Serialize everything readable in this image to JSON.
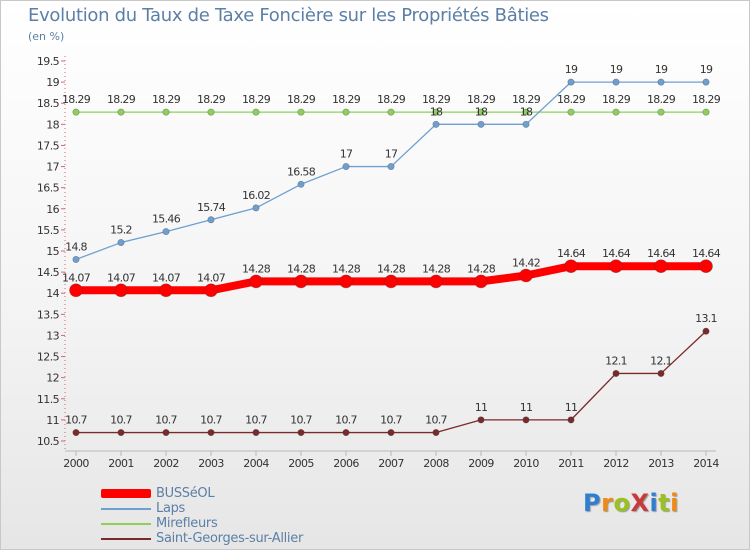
{
  "title": "Evolution du Taux de Taxe Foncière sur les Propriétés Bâties",
  "unit_label": "(en %)",
  "logo": {
    "text": "ProXiti",
    "colors": [
      "#2f7fd0",
      "#f08a12",
      "#9ac21c",
      "#c83a3a",
      "#2f7fd0",
      "#9ac21c",
      "#f08a12"
    ]
  },
  "chart_data": {
    "type": "line",
    "title": "Evolution du Taux de Taxe Foncière sur les Propriétés Bâties",
    "ylabel": "(en %)",
    "xlabel": "",
    "x": [
      "2000",
      "2001",
      "2002",
      "2003",
      "2004",
      "2005",
      "2006",
      "2007",
      "2008",
      "2009",
      "2010",
      "2011",
      "2012",
      "2013",
      "2014"
    ],
    "ylim": [
      10.5,
      19.5
    ],
    "yticks": [
      "10.5",
      "11",
      "11.5",
      "12",
      "12.5",
      "13",
      "13.5",
      "14",
      "14.5",
      "15",
      "15.5",
      "16",
      "16.5",
      "17",
      "17.5",
      "18",
      "18.5",
      "19",
      "19.5"
    ],
    "grid": false,
    "legend_position": "bottom-left",
    "series": [
      {
        "name": "BUSSéOL",
        "color": "#ff0000",
        "values": [
          14.07,
          14.07,
          14.07,
          14.07,
          14.28,
          14.28,
          14.28,
          14.28,
          14.28,
          14.28,
          14.42,
          14.64,
          14.64,
          14.64,
          14.64
        ],
        "labels": [
          "14.07",
          "14.07",
          "14.07",
          "14.07",
          "14.28",
          "14.28",
          "14.28",
          "14.28",
          "14.28",
          "14.28",
          "14.42",
          "14.64",
          "14.64",
          "14.64",
          "14.64"
        ]
      },
      {
        "name": "Laps",
        "color": "#6e9fd0",
        "values": [
          14.8,
          15.2,
          15.46,
          15.74,
          16.02,
          16.58,
          17,
          17,
          18,
          18,
          18,
          19,
          19,
          19,
          19
        ],
        "labels": [
          "14.8",
          "15.2",
          "15.46",
          "15.74",
          "16.02",
          "16.58",
          "17",
          "17",
          "18",
          "18",
          "18",
          "19",
          "19",
          "19",
          "19"
        ]
      },
      {
        "name": "Mirefleurs",
        "color": "#8cd05a",
        "values": [
          18.29,
          18.29,
          18.29,
          18.29,
          18.29,
          18.29,
          18.29,
          18.29,
          18.29,
          18.29,
          18.29,
          18.29,
          18.29,
          18.29,
          18.29
        ],
        "labels": [
          "18.29",
          "18.29",
          "18.29",
          "18.29",
          "18.29",
          "18.29",
          "18.29",
          "18.29",
          "18.29",
          "18.29",
          "18.29",
          "18.29",
          "18.29",
          "18.29",
          "18.29"
        ]
      },
      {
        "name": "Saint-Georges-sur-Allier",
        "color": "#7a2a2a",
        "values": [
          10.7,
          10.7,
          10.7,
          10.7,
          10.7,
          10.7,
          10.7,
          10.7,
          10.7,
          11,
          11,
          11,
          12.1,
          12.1,
          13.1
        ],
        "labels": [
          "10.7",
          "10.7",
          "10.7",
          "10.7",
          "10.7",
          "10.7",
          "10.7",
          "10.7",
          "10.7",
          "11",
          "11",
          "11",
          "12.1",
          "12.1",
          "13.1"
        ]
      }
    ]
  }
}
